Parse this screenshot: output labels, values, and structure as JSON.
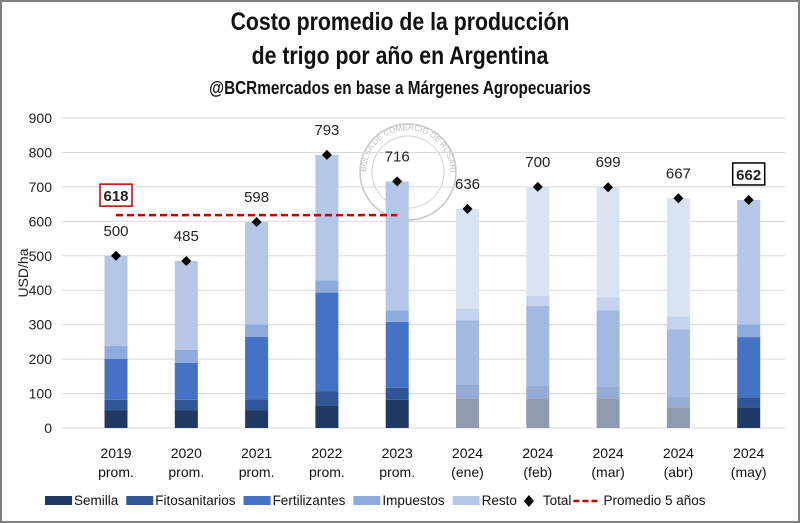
{
  "title_line1": "Costo promedio de la producción",
  "title_line2": "de trigo por año en Argentina",
  "subtitle": "@BCRmercados en base a Márgenes Agropecuarios",
  "watermark": "BOLSA DE COMERCIO DE ROSARIO",
  "chart_data": {
    "type": "bar",
    "stacked": true,
    "ylabel": "USD/ha",
    "ylim": [
      0,
      900
    ],
    "yticks": [
      "0",
      "100",
      "200",
      "300",
      "400",
      "500",
      "600",
      "700",
      "800",
      "900"
    ],
    "grid": true,
    "legend_position": "bottom",
    "categories": [
      {
        "line1": "2019",
        "line2": "prom."
      },
      {
        "line1": "2020",
        "line2": "prom."
      },
      {
        "line1": "2021",
        "line2": "prom."
      },
      {
        "line1": "2022",
        "line2": "prom."
      },
      {
        "line1": "2023",
        "line2": "prom."
      },
      {
        "line1": "2024",
        "line2": "(ene)"
      },
      {
        "line1": "2024",
        "line2": "(feb)"
      },
      {
        "line1": "2024",
        "line2": "(mar)"
      },
      {
        "line1": "2024",
        "line2": "(abr)"
      },
      {
        "line1": "2024",
        "line2": "(may)"
      }
    ],
    "faded": [
      false,
      false,
      false,
      false,
      false,
      true,
      true,
      true,
      true,
      false
    ],
    "series": [
      {
        "name": "Semilla",
        "color": "#1f3864",
        "faded_color": "#8e9ab0",
        "values": [
          52,
          52,
          52,
          66,
          82,
          86,
          86,
          86,
          60,
          60
        ]
      },
      {
        "name": "Fitosanitarios",
        "color": "#2f5597",
        "faded_color": "#95acd6",
        "values": [
          30,
          30,
          31,
          41,
          35,
          39,
          37,
          34,
          31,
          29
        ]
      },
      {
        "name": "Fertilizantes",
        "color": "#4472c4",
        "faded_color": "#a2b9e2",
        "values": [
          119,
          107,
          182,
          286,
          191,
          188,
          231,
          222,
          195,
          175
        ]
      },
      {
        "name": "Impuestos",
        "color": "#8faadc",
        "faded_color": "#c4d3ee",
        "values": [
          37,
          38,
          36,
          36,
          33,
          33,
          30,
          37,
          38,
          37
        ]
      },
      {
        "name": "Resto",
        "color": "#b4c7e7",
        "faded_color": "#dae3f3",
        "values": [
          262,
          258,
          297,
          364,
          375,
          290,
          316,
          320,
          343,
          361
        ]
      }
    ],
    "totals": {
      "name": "Total",
      "values": [
        500,
        485,
        598,
        793,
        716,
        636,
        700,
        699,
        667,
        662
      ],
      "labels": [
        "500",
        "485",
        "598",
        "793",
        "716",
        "636",
        "700",
        "699",
        "667",
        "662"
      ]
    },
    "average": {
      "name": "Promedio 5 años",
      "value": 618,
      "label": "618",
      "color": "#c00000"
    }
  }
}
